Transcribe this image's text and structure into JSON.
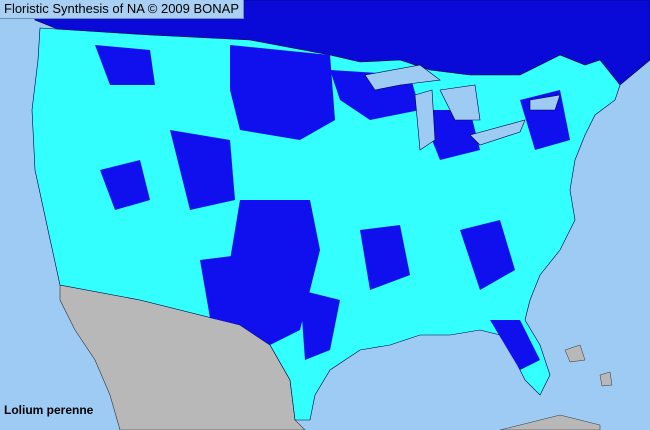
{
  "title": "Floristic Synthesis of NA © 2009 BONAP",
  "species": "Lolium perenne",
  "colors": {
    "ocean_lakes": "#9ecbf4",
    "present_county": "#33ffff",
    "present_native_or_state": "#1010ee",
    "canada": "#0a0ad8",
    "mexico": "#b8b8b8",
    "county_borders": "#000040"
  }
}
